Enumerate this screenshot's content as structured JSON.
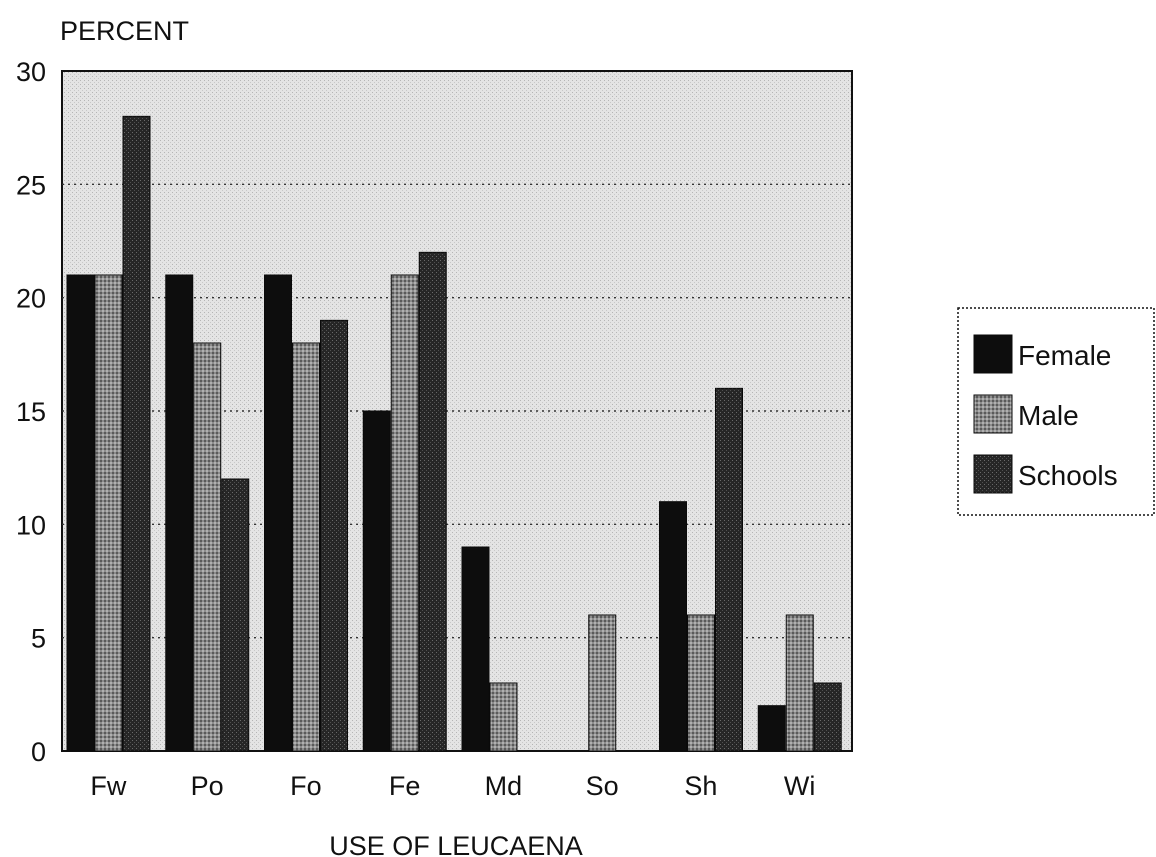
{
  "chart_data": {
    "type": "bar",
    "ylabel": "PERCENT",
    "xlabel": "USE OF LEUCAENA",
    "categories": [
      "Fw",
      "Po",
      "Fo",
      "Fe",
      "Md",
      "So",
      "Sh",
      "Wi"
    ],
    "series": [
      {
        "name": "Female",
        "values": [
          21,
          21,
          21,
          15,
          9,
          0,
          11,
          2
        ]
      },
      {
        "name": "Male",
        "values": [
          21,
          18,
          18,
          21,
          3,
          6,
          6,
          6
        ]
      },
      {
        "name": "Schools",
        "values": [
          28,
          12,
          19,
          22,
          0,
          0,
          16,
          3
        ]
      }
    ],
    "ylim": [
      0,
      30
    ],
    "yticks": [
      "0",
      "5",
      "10",
      "15",
      "20",
      "25",
      "30"
    ],
    "grid": "horizontal dotted",
    "legend_position": "right",
    "colors": {
      "Female": "#0d0d0d",
      "Male": "#8a8a8a",
      "Schools": "#2e2e2e",
      "plot_background": "#dcdcdc"
    }
  }
}
